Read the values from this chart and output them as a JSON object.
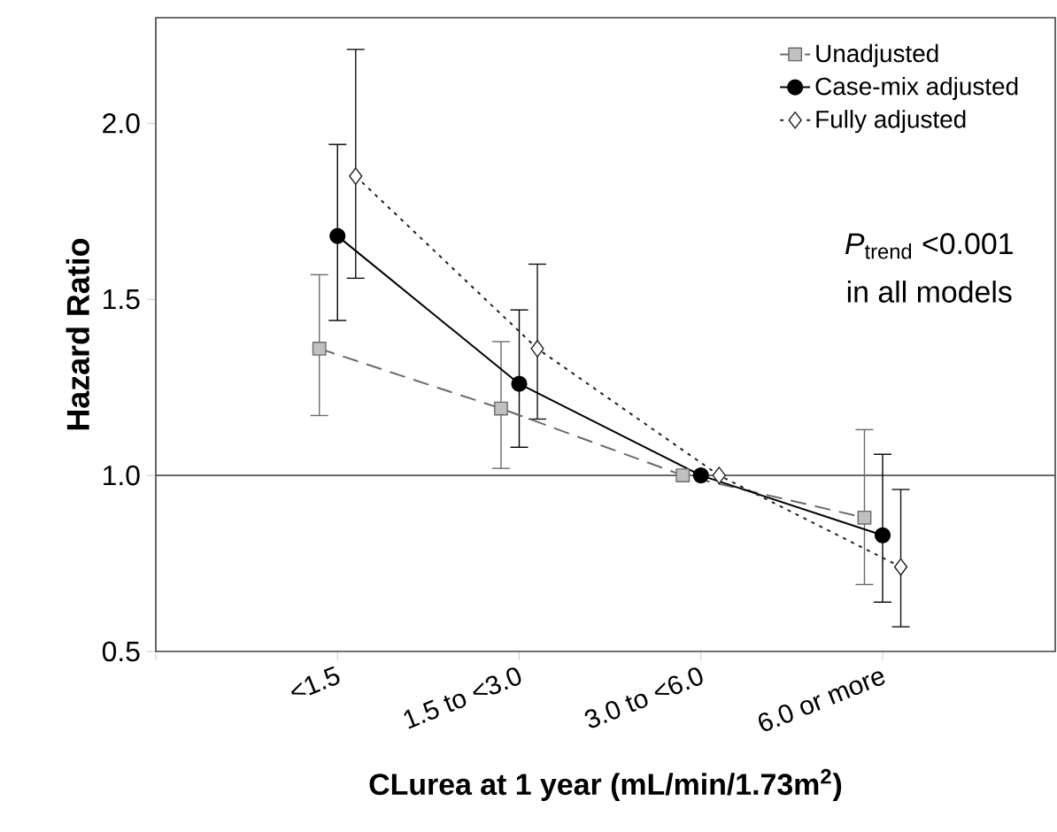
{
  "chart_data": {
    "type": "line",
    "xlabel": "CLurea at 1 year (mL/min/1.73m$^{2}$)",
    "ylabel": "Hazard Ratio",
    "categories": [
      "<1.5",
      "1.5 to <3.0",
      "3.0 to <6.0",
      "6.0 or more"
    ],
    "ylim": [
      0.5,
      2.3
    ],
    "yticks": [
      {
        "value": 0.5,
        "label": "0.5"
      },
      {
        "value": 1.0,
        "label": "1.0"
      },
      {
        "value": 1.5,
        "label": "1.5"
      },
      {
        "value": 2.0,
        "label": "2.0"
      }
    ],
    "legend": "top right",
    "grid": false,
    "ref_lines": [
      {
        "axis": "y",
        "value": 1.0,
        "color": "#555555"
      }
    ],
    "annotations": [
      "*P*$_{trend}$ <0.001",
      "in all models"
    ],
    "series": [
      {
        "name": "Unadjusted",
        "color": "#c0c0c0",
        "marker": "square",
        "line_style": "dashed",
        "values": [
          1.36,
          1.19,
          1.0,
          0.88
        ],
        "errors": [
          [
            1.17,
            1.57
          ],
          [
            1.02,
            1.38
          ],
          null,
          [
            0.69,
            1.13
          ]
        ]
      },
      {
        "name": "Case-mix adjusted",
        "color": "#000000",
        "marker": "circle",
        "line_style": "solid",
        "values": [
          1.68,
          1.26,
          1.0,
          0.83
        ],
        "errors": [
          [
            1.44,
            1.94
          ],
          [
            1.08,
            1.47
          ],
          null,
          [
            0.64,
            1.06
          ]
        ]
      },
      {
        "name": "Fully adjusted",
        "color": "#202020",
        "marker": "diamond",
        "line_style": "dotted",
        "values": [
          1.85,
          1.36,
          1.0,
          0.74
        ],
        "errors": [
          [
            1.56,
            2.21
          ],
          [
            1.16,
            1.6
          ],
          null,
          [
            0.57,
            0.96
          ]
        ]
      }
    ]
  }
}
